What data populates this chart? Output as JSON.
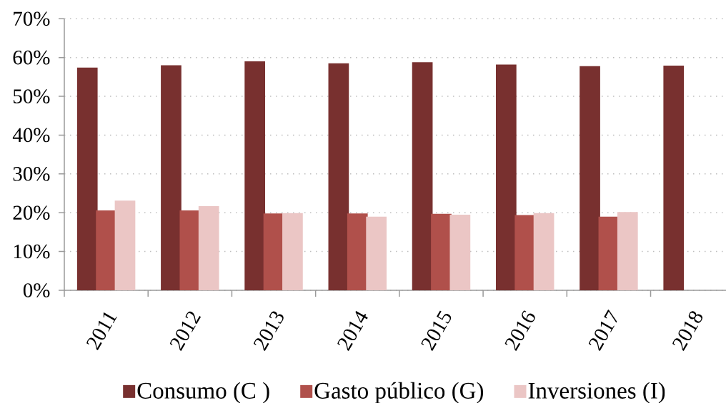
{
  "chart_data": {
    "type": "bar",
    "categories": [
      "2011",
      "2012",
      "2013",
      "2014",
      "2015",
      "2016",
      "2017",
      "2018"
    ],
    "series": [
      {
        "name": "Consumo (C )",
        "color": "#78302f",
        "values": [
          57.4,
          58.0,
          59.0,
          58.5,
          58.8,
          58.2,
          57.8,
          57.9
        ]
      },
      {
        "name": "Gasto público (G)",
        "color": "#b0504b",
        "values": [
          20.6,
          20.6,
          19.8,
          19.8,
          19.7,
          19.4,
          19.0,
          null
        ]
      },
      {
        "name": "Inversiones (I)",
        "color": "#ebc6c5",
        "values": [
          23.1,
          21.7,
          19.9,
          19.0,
          19.5,
          19.9,
          20.2,
          null
        ]
      }
    ],
    "ylim": [
      0,
      70
    ],
    "yticks": [
      {
        "value": 0,
        "label": "0%"
      },
      {
        "value": 10,
        "label": "10%"
      },
      {
        "value": 20,
        "label": "20%"
      },
      {
        "value": 30,
        "label": "30%"
      },
      {
        "value": 40,
        "label": "40%"
      },
      {
        "value": 50,
        "label": "50%"
      },
      {
        "value": 60,
        "label": "60%"
      },
      {
        "value": 70,
        "label": "70%"
      }
    ],
    "grid": "y",
    "legend": "bottom"
  }
}
